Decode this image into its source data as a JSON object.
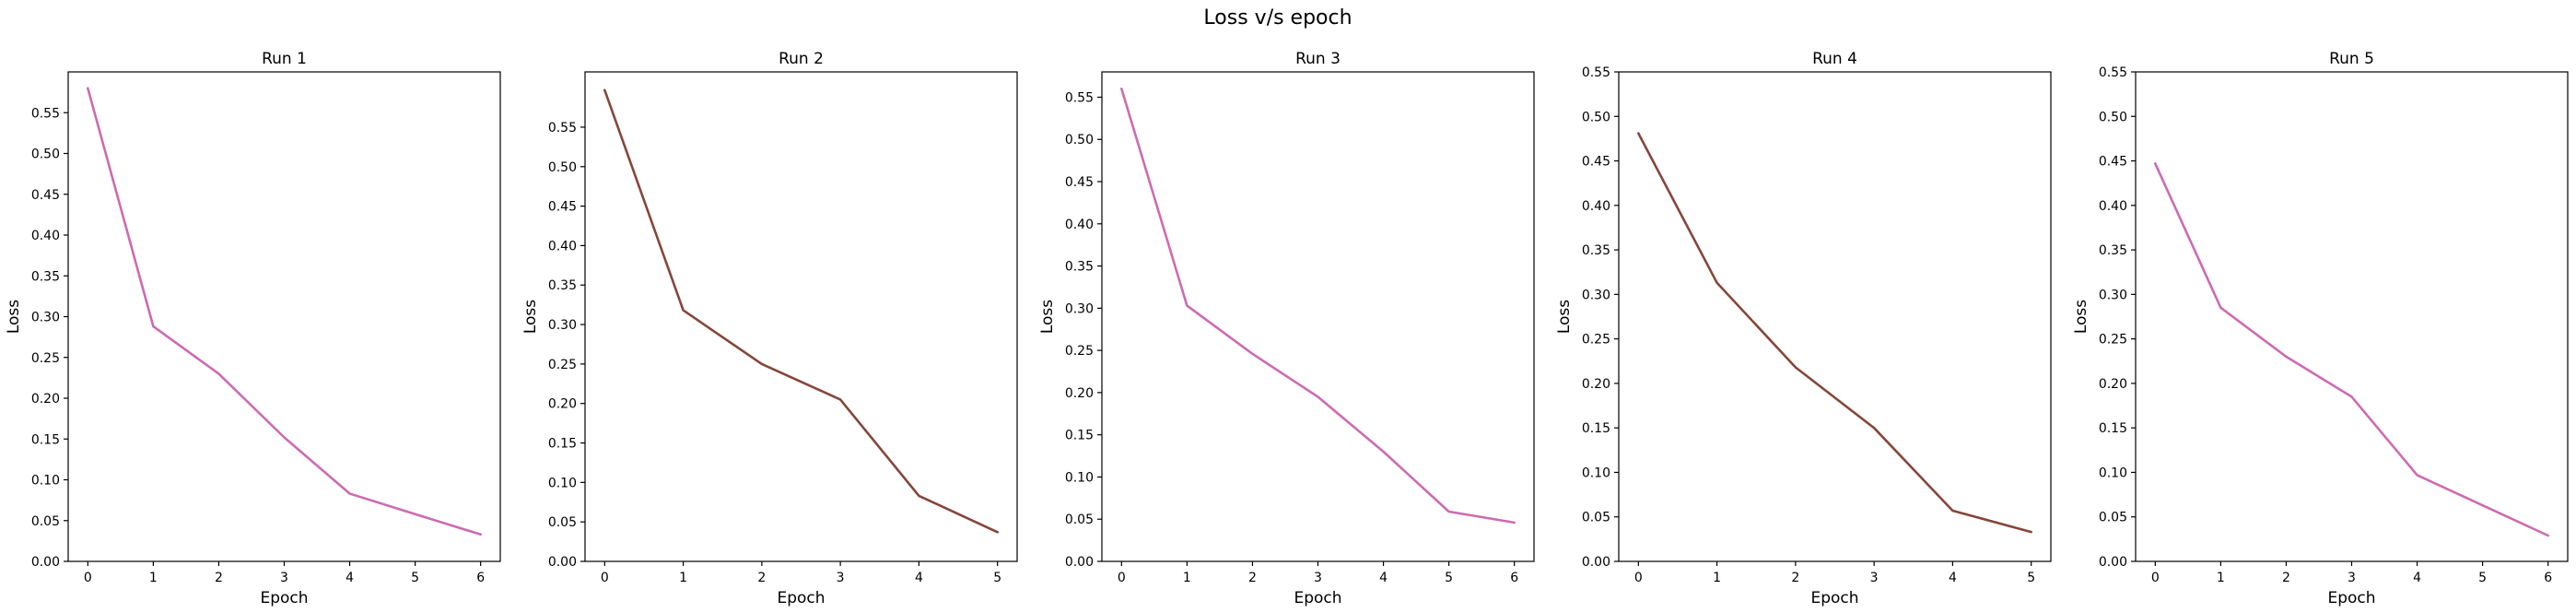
{
  "figure": {
    "title": "Loss v/s epoch"
  },
  "chart_data": [
    {
      "type": "line",
      "title": "Run 1",
      "xlabel": "Epoch",
      "ylabel": "Loss",
      "x": [
        0,
        1,
        2,
        3,
        4,
        5,
        6
      ],
      "series": [
        {
          "values": [
            0.58,
            0.288,
            0.23,
            0.152,
            0.083,
            0.058,
            0.033
          ],
          "color": "#cc6bb1"
        }
      ],
      "xlim": [
        -0.3,
        6.3
      ],
      "ylim": [
        0,
        0.6
      ],
      "xticks": [
        0,
        1,
        2,
        3,
        4,
        5,
        6
      ],
      "yticks": [
        0.0,
        0.05,
        0.1,
        0.15,
        0.2,
        0.25,
        0.3,
        0.35,
        0.4,
        0.45,
        0.5,
        0.55
      ],
      "ytick_labels": [
        "0.00",
        "0.05",
        "0.10",
        "0.15",
        "0.20",
        "0.25",
        "0.30",
        "0.35",
        "0.40",
        "0.45",
        "0.50",
        "0.55"
      ],
      "grid": false
    },
    {
      "type": "line",
      "title": "Run 2",
      "xlabel": "Epoch",
      "ylabel": "Loss",
      "x": [
        0,
        1,
        2,
        3,
        4,
        5
      ],
      "series": [
        {
          "values": [
            0.597,
            0.318,
            0.25,
            0.205,
            0.083,
            0.037
          ],
          "color": "#85463a"
        }
      ],
      "xlim": [
        -0.25,
        5.25
      ],
      "ylim": [
        0,
        0.62
      ],
      "xticks": [
        0,
        1,
        2,
        3,
        4,
        5
      ],
      "yticks": [
        0.0,
        0.05,
        0.1,
        0.15,
        0.2,
        0.25,
        0.3,
        0.35,
        0.4,
        0.45,
        0.5,
        0.55
      ],
      "ytick_labels": [
        "0.00",
        "0.05",
        "0.10",
        "0.15",
        "0.20",
        "0.25",
        "0.30",
        "0.35",
        "0.40",
        "0.45",
        "0.50",
        "0.55"
      ],
      "grid": false
    },
    {
      "type": "line",
      "title": "Run 3",
      "xlabel": "Epoch",
      "ylabel": "Loss",
      "x": [
        0,
        1,
        2,
        3,
        4,
        5,
        6
      ],
      "series": [
        {
          "values": [
            0.56,
            0.303,
            0.246,
            0.195,
            0.13,
            0.059,
            0.046
          ],
          "color": "#cc6bb1"
        }
      ],
      "xlim": [
        -0.3,
        6.3
      ],
      "ylim": [
        0,
        0.58
      ],
      "xticks": [
        0,
        1,
        2,
        3,
        4,
        5,
        6
      ],
      "yticks": [
        0.0,
        0.05,
        0.1,
        0.15,
        0.2,
        0.25,
        0.3,
        0.35,
        0.4,
        0.45,
        0.5,
        0.55
      ],
      "ytick_labels": [
        "0.00",
        "0.05",
        "0.10",
        "0.15",
        "0.20",
        "0.25",
        "0.30",
        "0.35",
        "0.40",
        "0.45",
        "0.50",
        "0.55"
      ],
      "grid": false
    },
    {
      "type": "line",
      "title": "Run 4",
      "xlabel": "Epoch",
      "ylabel": "Loss",
      "x": [
        0,
        1,
        2,
        3,
        4,
        5
      ],
      "series": [
        {
          "values": [
            0.481,
            0.313,
            0.218,
            0.15,
            0.057,
            0.033
          ],
          "color": "#85463a"
        }
      ],
      "xlim": [
        -0.25,
        5.25
      ],
      "ylim": [
        0,
        0.55
      ],
      "xticks": [
        0,
        1,
        2,
        3,
        4,
        5
      ],
      "yticks": [
        0.0,
        0.05,
        0.1,
        0.15,
        0.2,
        0.25,
        0.3,
        0.35,
        0.4,
        0.45,
        0.5,
        0.55
      ],
      "ytick_labels": [
        "0.00",
        "0.05",
        "0.10",
        "0.15",
        "0.20",
        "0.25",
        "0.30",
        "0.35",
        "0.40",
        "0.45",
        "0.50",
        "0.55"
      ],
      "grid": false
    },
    {
      "type": "line",
      "title": "Run 5",
      "xlabel": "Epoch",
      "ylabel": "Loss",
      "x": [
        0,
        1,
        2,
        3,
        4,
        5,
        6
      ],
      "series": [
        {
          "values": [
            0.447,
            0.285,
            0.23,
            0.185,
            0.097,
            0.063,
            0.029
          ],
          "color": "#cc6bb1"
        }
      ],
      "xlim": [
        -0.3,
        6.3
      ],
      "ylim": [
        0,
        0.55
      ],
      "xticks": [
        0,
        1,
        2,
        3,
        4,
        5,
        6
      ],
      "yticks": [
        0.0,
        0.05,
        0.1,
        0.15,
        0.2,
        0.25,
        0.3,
        0.35,
        0.4,
        0.45,
        0.5,
        0.55
      ],
      "ytick_labels": [
        "0.00",
        "0.05",
        "0.10",
        "0.15",
        "0.20",
        "0.25",
        "0.30",
        "0.35",
        "0.40",
        "0.45",
        "0.50",
        "0.55"
      ],
      "grid": false
    }
  ]
}
